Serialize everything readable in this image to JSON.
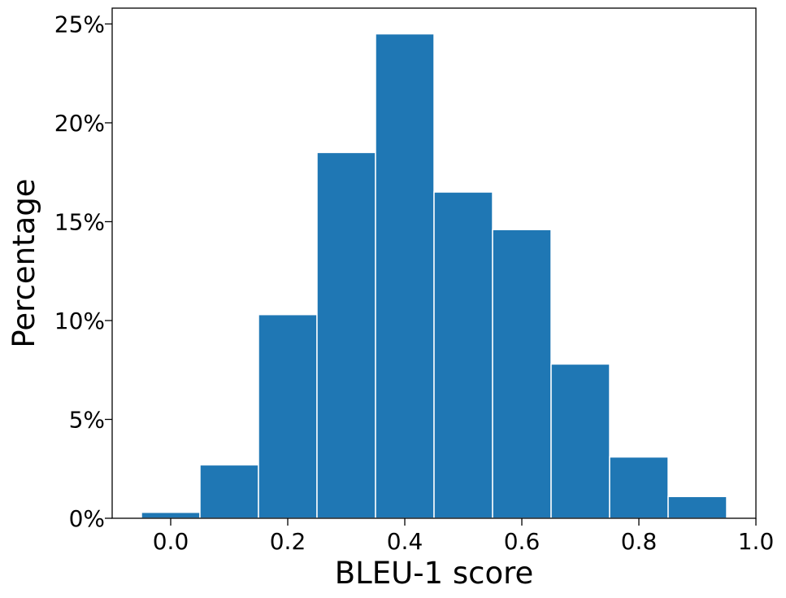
{
  "chart_data": {
    "type": "bar",
    "bin_edges": [
      -0.05,
      0.05,
      0.15,
      0.25,
      0.35,
      0.45,
      0.55,
      0.65,
      0.75,
      0.85,
      0.95
    ],
    "values": [
      0.3,
      2.7,
      10.3,
      18.5,
      24.5,
      16.5,
      14.6,
      7.8,
      3.1,
      1.1
    ],
    "xlabel": "BLEU-1 score",
    "ylabel": "Percentage",
    "xlim": [
      -0.1,
      1.0
    ],
    "ylim": [
      0,
      25.8
    ],
    "xticks": [
      0.0,
      0.2,
      0.4,
      0.6,
      0.8,
      1.0
    ],
    "xtick_labels": [
      "0.0",
      "0.2",
      "0.4",
      "0.6",
      "0.8",
      "1.0"
    ],
    "yticks": [
      0,
      5,
      10,
      15,
      20,
      25
    ],
    "ytick_labels": [
      "0%",
      "5%",
      "10%",
      "15%",
      "20%",
      "25%"
    ],
    "grid": false,
    "bar_color": "#1f77b4"
  }
}
